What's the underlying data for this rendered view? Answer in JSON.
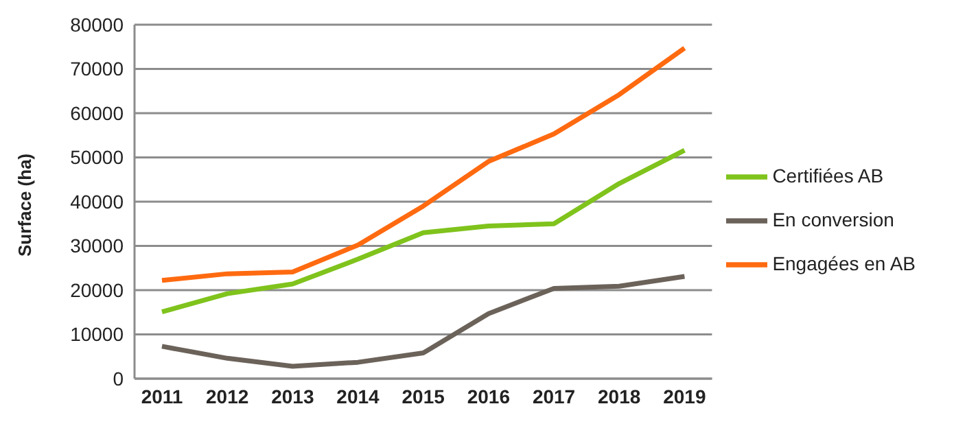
{
  "chart_data": {
    "type": "line",
    "ylabel": "Surface (ha)",
    "categories": [
      "2011",
      "2012",
      "2013",
      "2014",
      "2015",
      "2016",
      "2017",
      "2018",
      "2019"
    ],
    "series": [
      {
        "name": "Certifiées AB",
        "color": "#7fc31c",
        "values": [
          15100,
          19200,
          21400,
          27000,
          33000,
          34500,
          35000,
          44100,
          51600
        ]
      },
      {
        "name": "En conversion",
        "color": "#6b625a",
        "values": [
          7300,
          4600,
          2800,
          3700,
          5800,
          14700,
          20400,
          20900,
          23100
        ]
      },
      {
        "name": "Engagées en AB",
        "color": "#ff6a10",
        "values": [
          22200,
          23700,
          24100,
          30200,
          39000,
          49100,
          55300,
          64200,
          74700
        ]
      }
    ],
    "ylim": [
      0,
      80000
    ],
    "yticks": [
      0,
      10000,
      20000,
      30000,
      40000,
      50000,
      60000,
      70000,
      80000
    ],
    "grid": "y",
    "legend": "right",
    "marker": "none",
    "line_style": "solid"
  }
}
